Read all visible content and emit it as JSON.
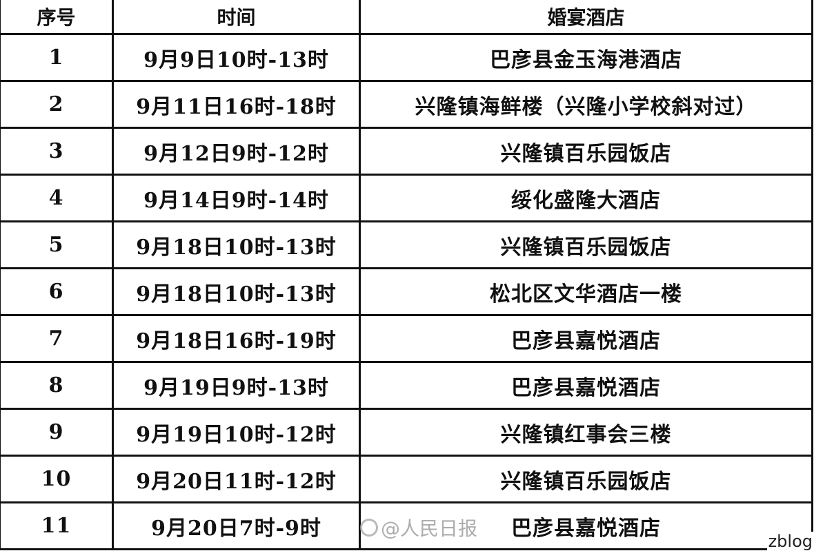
{
  "headers": [
    "序号",
    "时间",
    "婚宴酒店"
  ],
  "rows": [
    {
      "no": "1",
      "time": "9月9日10时-13时",
      "hotel": "巴彦县金玉海港酒店"
    },
    {
      "no": "2",
      "time": "9月11日16时-18时",
      "hotel": "兴隆镇海鲜楼（兴隆小学校斜对过）"
    },
    {
      "no": "3",
      "time": "9月12日9时-12时",
      "hotel": "兴隆镇百乐园饭店"
    },
    {
      "no": "4",
      "time": "9月14日9时-14时",
      "hotel": "绥化盛隆大酒店"
    },
    {
      "no": "5",
      "time": "9月18日10时-13时",
      "hotel": "兴隆镇百乐园饭店"
    },
    {
      "no": "6",
      "time": "9月18日10时-13时",
      "hotel": "松北区文华酒店一楼"
    },
    {
      "no": "7",
      "time": "9月18日16时-19时",
      "hotel": "巴彦县嘉悦酒店"
    },
    {
      "no": "8",
      "time": "9月19日9时-13时",
      "hotel": "巴彦县嘉悦酒店"
    },
    {
      "no": "9",
      "time": "9月19日10时-12时",
      "hotel": "兴隆镇红事会三楼"
    },
    {
      "no": "10",
      "time": "9月20日11时-12时",
      "hotel": "兴隆镇百乐园饭店"
    },
    {
      "no": "11",
      "time": "9月20日7时-9时",
      "hotel": "巴彦县嘉悦酒店"
    }
  ],
  "watermark": {
    "icon": "weibo-icon",
    "text": "@人民日报"
  },
  "corner_label": "zblog"
}
